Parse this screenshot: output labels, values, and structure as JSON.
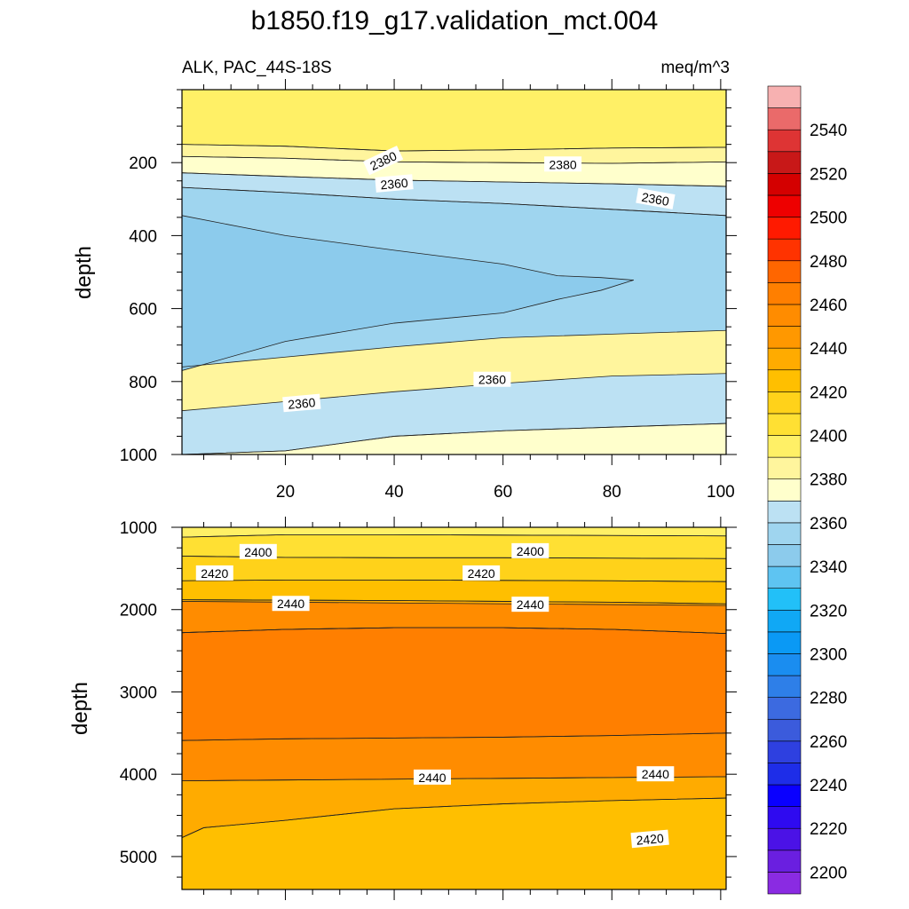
{
  "chart_data": [
    {
      "type": "contour",
      "panel": "upper",
      "title": "b1850.f19_g17.validation_mct.004",
      "left_subtitle": "ALK, PAC_44S-18S",
      "right_subtitle": "meq/m^3",
      "xlabel": "",
      "ylabel": "depth",
      "xlim": [
        1,
        101
      ],
      "ylim": [
        1000,
        0
      ],
      "x_ticks": [
        20,
        40,
        60,
        80,
        100
      ],
      "y_ticks": [
        200,
        400,
        600,
        800,
        1000
      ],
      "grid": false,
      "regions": [
        {
          "level_min": 2380,
          "level_max": 2390,
          "color": "#fff59d",
          "upper": [
            [
              1,
              150
            ],
            [
              20,
              155
            ],
            [
              40,
              168
            ],
            [
              60,
              165
            ],
            [
              80,
              160
            ],
            [
              101,
              158
            ]
          ],
          "lower": [
            [
              1,
              183
            ],
            [
              20,
              188
            ],
            [
              40,
              198
            ],
            [
              60,
              200
            ],
            [
              80,
              202
            ],
            [
              101,
              198
            ]
          ]
        },
        {
          "level_min": 2390,
          "level_max": 2400,
          "color": "#fff066",
          "upper": null,
          "lower": [
            [
              1,
              150
            ],
            [
              20,
              155
            ],
            [
              40,
              168
            ],
            [
              60,
              165
            ],
            [
              80,
              160
            ],
            [
              101,
              158
            ]
          ]
        },
        {
          "level_min": 2370,
          "level_max": 2380,
          "color": "#ffffcc",
          "upper": [
            [
              1,
              183
            ],
            [
              20,
              188
            ],
            [
              40,
              198
            ],
            [
              60,
              200
            ],
            [
              80,
              202
            ],
            [
              101,
              198
            ]
          ],
          "lower": [
            [
              1,
              228
            ],
            [
              20,
              238
            ],
            [
              40,
              248
            ],
            [
              60,
              253
            ],
            [
              80,
              258
            ],
            [
              101,
              265
            ]
          ]
        },
        {
          "level_min": 2360,
          "level_max": 2370,
          "color": "#bce1f3",
          "upper": [
            [
              1,
              228
            ],
            [
              20,
              238
            ],
            [
              40,
              248
            ],
            [
              60,
              253
            ],
            [
              80,
              258
            ],
            [
              101,
              265
            ]
          ],
          "lower": [
            [
              1,
              268
            ],
            [
              20,
              282
            ],
            [
              40,
              300
            ],
            [
              60,
              312
            ],
            [
              80,
              328
            ],
            [
              101,
              345
            ]
          ]
        },
        {
          "level_min": 2350,
          "level_max": 2360,
          "color": "#9fd5ef",
          "upper": [
            [
              1,
              268
            ],
            [
              20,
              282
            ],
            [
              40,
              300
            ],
            [
              60,
              312
            ],
            [
              80,
              328
            ],
            [
              101,
              345
            ]
          ],
          "lower": [
            [
              1,
              760
            ],
            [
              20,
              733
            ],
            [
              40,
              705
            ],
            [
              60,
              680
            ],
            [
              80,
              670
            ],
            [
              101,
              660
            ]
          ]
        },
        {
          "level_min": 2340,
          "level_max": 2350,
          "color": "#8ccbec",
          "upper": [
            [
              1,
              345
            ],
            [
              20,
              400
            ],
            [
              40,
              440
            ],
            [
              60,
              478
            ],
            [
              70,
              510
            ],
            [
              78,
              515
            ],
            [
              84,
              522
            ]
          ],
          "lower": [
            [
              1,
              770
            ],
            [
              20,
              690
            ],
            [
              40,
              640
            ],
            [
              60,
              612
            ],
            [
              70,
              575
            ],
            [
              78,
              550
            ],
            [
              84,
              522
            ]
          ]
        },
        {
          "level_min": 2360,
          "level_max": 2370,
          "color": "#bce1f3",
          "upper": [
            [
              1,
              880
            ],
            [
              20,
              855
            ],
            [
              40,
              828
            ],
            [
              60,
              805
            ],
            [
              80,
              785
            ],
            [
              101,
              778
            ]
          ],
          "lower": [
            [
              1,
              1000
            ],
            [
              20,
              990
            ],
            [
              40,
              950
            ],
            [
              60,
              935
            ],
            [
              80,
              925
            ],
            [
              101,
              915
            ]
          ]
        },
        {
          "level_min": 2370,
          "level_max": 2380,
          "color": "#ffffcc",
          "upper": [
            [
              1,
              1000
            ],
            [
              20,
              990
            ],
            [
              40,
              950
            ],
            [
              60,
              935
            ],
            [
              80,
              925
            ],
            [
              101,
              915
            ]
          ],
          "lower": null
        }
      ],
      "contour_labels": [
        {
          "text": "2380",
          "x": 38,
          "y": 195,
          "angle": -25
        },
        {
          "text": "2380",
          "x": 71,
          "y": 205,
          "angle": 0
        },
        {
          "text": "2360",
          "x": 40,
          "y": 258,
          "angle": -5
        },
        {
          "text": "2360",
          "x": 88,
          "y": 300,
          "angle": 10
        },
        {
          "text": "2360",
          "x": 58,
          "y": 795,
          "angle": 0
        },
        {
          "text": "2360",
          "x": 23,
          "y": 860,
          "angle": -5
        }
      ]
    },
    {
      "type": "contour",
      "panel": "lower",
      "xlabel": "",
      "ylabel": "depth",
      "xlim": [
        1,
        101
      ],
      "ylim": [
        5400,
        1000
      ],
      "y_ticks": [
        1000,
        2000,
        3000,
        4000,
        5000
      ],
      "grid": false,
      "regions": [
        {
          "level_min": 2390,
          "level_max": 2400,
          "color": "#fff066",
          "upper": null,
          "lower": [
            [
              1,
              1120
            ],
            [
              20,
              1090
            ],
            [
              40,
              1090
            ],
            [
              60,
              1095
            ],
            [
              80,
              1100
            ],
            [
              101,
              1105
            ]
          ]
        },
        {
          "level_min": 2400,
          "level_max": 2410,
          "color": "#ffe033",
          "upper": [
            [
              1,
              1120
            ],
            [
              20,
              1090
            ],
            [
              40,
              1090
            ],
            [
              60,
              1095
            ],
            [
              80,
              1100
            ],
            [
              101,
              1105
            ]
          ],
          "lower": [
            [
              1,
              1350
            ],
            [
              20,
              1365
            ],
            [
              40,
              1370
            ],
            [
              60,
              1370
            ],
            [
              80,
              1375
            ],
            [
              101,
              1380
            ]
          ]
        },
        {
          "level_min": 2410,
          "level_max": 2420,
          "color": "#ffd21a",
          "upper": [
            [
              1,
              1350
            ],
            [
              20,
              1365
            ],
            [
              40,
              1370
            ],
            [
              60,
              1370
            ],
            [
              80,
              1375
            ],
            [
              101,
              1380
            ]
          ],
          "lower": [
            [
              1,
              1650
            ],
            [
              20,
              1640
            ],
            [
              40,
              1640
            ],
            [
              60,
              1645
            ],
            [
              80,
              1650
            ],
            [
              101,
              1660
            ]
          ]
        },
        {
          "level_min": 2420,
          "level_max": 2430,
          "color": "#ffbf00",
          "upper": [
            [
              1,
              1650
            ],
            [
              20,
              1640
            ],
            [
              40,
              1640
            ],
            [
              60,
              1645
            ],
            [
              80,
              1650
            ],
            [
              101,
              1660
            ]
          ],
          "lower": [
            [
              1,
              1880
            ],
            [
              20,
              1885
            ],
            [
              40,
              1890
            ],
            [
              60,
              1900
            ],
            [
              80,
              1910
            ],
            [
              101,
              1930
            ]
          ]
        },
        {
          "level_min": 2430,
          "level_max": 2440,
          "color": "#ffab00",
          "upper": [
            [
              1,
              1880
            ],
            [
              20,
              1885
            ],
            [
              40,
              1890
            ],
            [
              60,
              1900
            ],
            [
              80,
              1910
            ],
            [
              101,
              1930
            ]
          ],
          "lower": [
            [
              1,
              2280
            ],
            [
              20,
              2240
            ],
            [
              40,
              2220
            ],
            [
              60,
              2220
            ],
            [
              80,
              2240
            ],
            [
              101,
              2290
            ]
          ]
        },
        {
          "level_min": 2440,
          "level_max": 2450,
          "color": "#ff8c00",
          "upper": [
            [
              1,
              1900
            ],
            [
              101,
              1950
            ]
          ],
          "lower": [
            [
              1,
              2280
            ],
            [
              20,
              2240
            ],
            [
              40,
              2220
            ],
            [
              60,
              2220
            ],
            [
              80,
              2240
            ],
            [
              101,
              2290
            ]
          ]
        },
        {
          "level_min": 2450,
          "level_max": 2460,
          "color": "#ff7f00",
          "upper": [
            [
              1,
              2280
            ],
            [
              20,
              2240
            ],
            [
              40,
              2220
            ],
            [
              60,
              2220
            ],
            [
              80,
              2240
            ],
            [
              101,
              2290
            ]
          ],
          "lower": [
            [
              1,
              3590
            ],
            [
              20,
              3570
            ],
            [
              40,
              3560
            ],
            [
              60,
              3550
            ],
            [
              80,
              3530
            ],
            [
              101,
              3500
            ]
          ]
        },
        {
          "level_min": 2440,
          "level_max": 2450,
          "color": "#ff8c00",
          "upper": [
            [
              1,
              3590
            ],
            [
              20,
              3570
            ],
            [
              40,
              3560
            ],
            [
              60,
              3550
            ],
            [
              80,
              3530
            ],
            [
              101,
              3500
            ]
          ],
          "lower": [
            [
              1,
              4080
            ],
            [
              20,
              4070
            ],
            [
              40,
              4060
            ],
            [
              60,
              4050
            ],
            [
              80,
              4040
            ],
            [
              101,
              4030
            ]
          ]
        },
        {
          "level_min": 2430,
          "level_max": 2440,
          "color": "#ffab00",
          "upper": [
            [
              1,
              4080
            ],
            [
              20,
              4070
            ],
            [
              40,
              4060
            ],
            [
              60,
              4050
            ],
            [
              80,
              4040
            ],
            [
              101,
              4030
            ]
          ],
          "lower": [
            [
              1,
              4770
            ],
            [
              5,
              4650
            ],
            [
              20,
              4560
            ],
            [
              40,
              4420
            ],
            [
              60,
              4360
            ],
            [
              80,
              4320
            ],
            [
              101,
              4290
            ]
          ]
        },
        {
          "level_min": 2420,
          "level_max": 2430,
          "color": "#ffbf00",
          "upper": [
            [
              1,
              4770
            ],
            [
              5,
              4650
            ],
            [
              20,
              4560
            ],
            [
              40,
              4420
            ],
            [
              60,
              4360
            ],
            [
              80,
              4320
            ],
            [
              101,
              4290
            ]
          ],
          "lower": null
        }
      ],
      "contour_labels": [
        {
          "text": "2400",
          "x": 15,
          "y": 1300,
          "angle": 0
        },
        {
          "text": "2400",
          "x": 65,
          "y": 1290,
          "angle": 0
        },
        {
          "text": "2420",
          "x": 7,
          "y": 1560,
          "angle": 0
        },
        {
          "text": "2420",
          "x": 56,
          "y": 1560,
          "angle": 0
        },
        {
          "text": "2440",
          "x": 21,
          "y": 1930,
          "angle": 0
        },
        {
          "text": "2440",
          "x": 65,
          "y": 1940,
          "angle": 0
        },
        {
          "text": "2440",
          "x": 47,
          "y": 4040,
          "angle": 0
        },
        {
          "text": "2440",
          "x": 88,
          "y": 4000,
          "angle": 0
        },
        {
          "text": "2420",
          "x": 87,
          "y": 4790,
          "angle": -5
        }
      ]
    }
  ],
  "colorbar": {
    "levels": [
      2200,
      2210,
      2220,
      2230,
      2240,
      2250,
      2260,
      2270,
      2280,
      2290,
      2300,
      2310,
      2320,
      2330,
      2340,
      2350,
      2360,
      2370,
      2380,
      2390,
      2400,
      2410,
      2420,
      2430,
      2440,
      2450,
      2460,
      2470,
      2480,
      2490,
      2500,
      2510,
      2520,
      2530,
      2540,
      2550
    ],
    "colors": [
      "#8a2be2",
      "#6a1fe0",
      "#4b12e6",
      "#2f0af0",
      "#0a00ff",
      "#1e2de8",
      "#2e40e0",
      "#3b5bdc",
      "#3c6ae0",
      "#2e7fe8",
      "#1a8df0",
      "#0a99f5",
      "#10a8f5",
      "#22c0f8",
      "#5ec4f2",
      "#8ccbec",
      "#9fd5ef",
      "#bce1f3",
      "#ffffcc",
      "#fff59d",
      "#fff066",
      "#ffe033",
      "#ffd21a",
      "#ffbf00",
      "#ffab00",
      "#ff9800",
      "#ff8c00",
      "#ff7f00",
      "#ff6600",
      "#ff3300",
      "#ff1a00",
      "#ee0000",
      "#d40000",
      "#c81818",
      "#de3434",
      "#ea6a6a",
      "#f7b1b1"
    ],
    "tick_labels": [
      "2200",
      "2220",
      "2240",
      "2260",
      "2280",
      "2300",
      "2320",
      "2340",
      "2360",
      "2380",
      "2400",
      "2420",
      "2440",
      "2460",
      "2480",
      "2500",
      "2520",
      "2540"
    ]
  }
}
